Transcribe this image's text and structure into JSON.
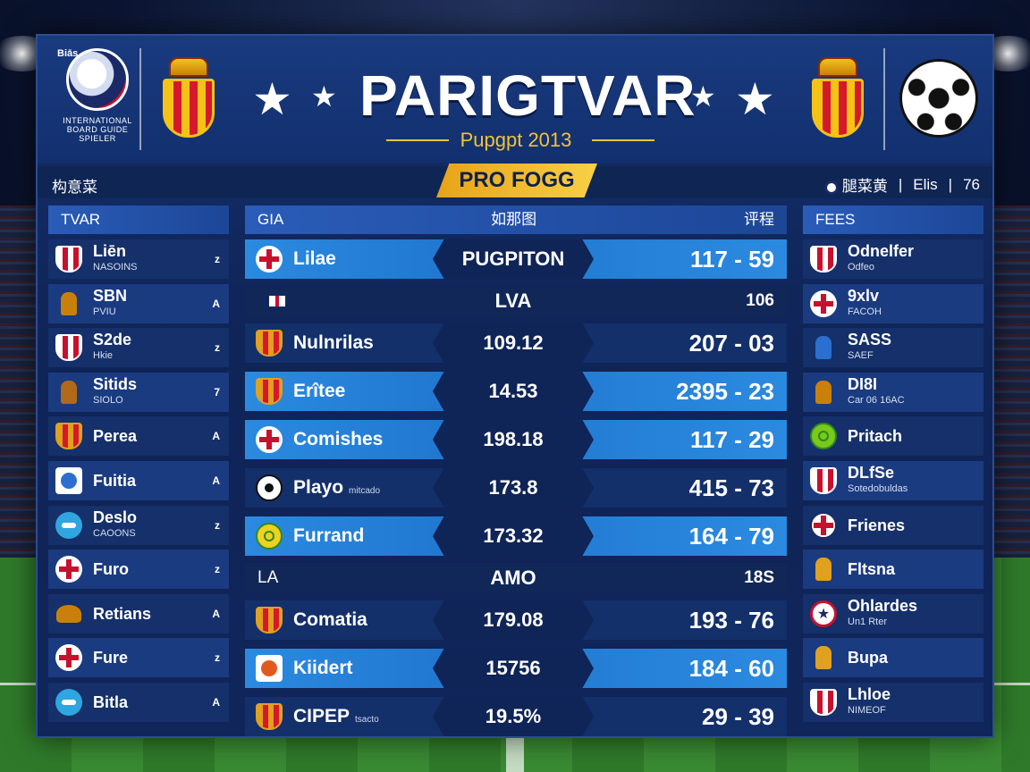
{
  "header": {
    "logo_top": "Biās",
    "logo_text": "INTERNATIONAL\nBOARD GUIDE\nSPIELER",
    "title": "PARIGTVAR",
    "subtitle": "Pupgpt 2013"
  },
  "subbar": {
    "left": "构意菜",
    "badge": "PRO FOGG",
    "right_1": "腿菜黄",
    "right_2": "Elis",
    "right_3": "76"
  },
  "left_column": {
    "header": "TVAR",
    "rows": [
      {
        "name": "Liēn",
        "sub": "NASOINS",
        "val": "z",
        "icon": "shield-stripes-icon",
        "color": "#c8102e"
      },
      {
        "name": "SBN",
        "sub": "PVIU",
        "val": "A",
        "icon": "figure-icon",
        "color": "#c9800a"
      },
      {
        "name": "S2de",
        "sub": "Hkie",
        "val": "z",
        "icon": "shield-stripes-icon",
        "color": "#c8102e"
      },
      {
        "name": "Sitids",
        "sub": "SIOLO",
        "val": "7",
        "icon": "figure-icon",
        "color": "#b06a1a"
      },
      {
        "name": "Perea",
        "sub": "",
        "val": "A",
        "icon": "crest-icon",
        "color": "#e0a020"
      },
      {
        "name": "Fuitia",
        "sub": "",
        "val": "A",
        "icon": "badge-icon",
        "color": "#2b6fd0"
      },
      {
        "name": "Deslo",
        "sub": "CAOONS",
        "val": "z",
        "icon": "bird-icon",
        "color": "#2fa6e0"
      },
      {
        "name": "Furo",
        "sub": "",
        "val": "z",
        "icon": "cross-icon",
        "color": "#c8102e"
      },
      {
        "name": "Retians",
        "sub": "",
        "val": "A",
        "icon": "eagle-icon",
        "color": "#c9800a"
      },
      {
        "name": "Fure",
        "sub": "",
        "val": "z",
        "icon": "cross-icon",
        "color": "#c8102e"
      },
      {
        "name": "Bitla",
        "sub": "",
        "val": "A",
        "icon": "bird-icon",
        "color": "#2fa6e0"
      }
    ]
  },
  "mid_column": {
    "header_left": "GIA",
    "header_mid": "如那图",
    "header_right": "评程",
    "rows": [
      {
        "type": "hl",
        "name": "Lilae",
        "small": "",
        "val": "PUGPITON",
        "score": "117 - 59",
        "icon": "cross-icon",
        "color": "#c8102e"
      },
      {
        "type": "thin",
        "name": "",
        "small": "",
        "val": "LVA",
        "score": "106",
        "icon": "flag-icon",
        "color": "#c8102e"
      },
      {
        "type": "norm",
        "name": "Nulnrilas",
        "small": "",
        "val": "109.12",
        "score": "207 - 03",
        "icon": "crest-icon",
        "color": "#e0a020"
      },
      {
        "type": "hl",
        "name": "Erîtee",
        "small": "",
        "val": "14.53",
        "score": "2395 - 23",
        "icon": "crest-icon",
        "color": "#e0a020"
      },
      {
        "type": "hl",
        "name": "Comishes",
        "small": "",
        "val": "198.18",
        "score": "117 - 29",
        "icon": "cross-icon",
        "color": "#c8102e"
      },
      {
        "type": "norm",
        "name": "Playo",
        "small": "mitcado",
        "val": "173.8",
        "score": "415 - 73",
        "icon": "ball-icon",
        "color": "#ffffff"
      },
      {
        "type": "hl",
        "name": "Furrand",
        "small": "",
        "val": "173.32",
        "score": "164 - 79",
        "icon": "ring-icon",
        "color": "#f0d020"
      },
      {
        "type": "thin",
        "name": "LA",
        "small": "",
        "val": "AMO",
        "score": "18S",
        "icon": "",
        "color": ""
      },
      {
        "type": "norm",
        "name": "Comatia",
        "small": "",
        "val": "179.08",
        "score": "193 - 76",
        "icon": "crest-icon",
        "color": "#e0a020"
      },
      {
        "type": "hl",
        "name": "Kiidert",
        "small": "",
        "val": "15756",
        "score": "184 - 60",
        "icon": "badge-icon",
        "color": "#e05a20"
      },
      {
        "type": "norm",
        "name": "CIPEP",
        "small": "tsacto",
        "val": "19.5%",
        "score": "29 - 39",
        "icon": "crest-icon",
        "color": "#e0a020"
      }
    ]
  },
  "right_column": {
    "header": "FEES",
    "rows": [
      {
        "name": "Odnelfer",
        "sub": "Odfeo",
        "icon": "shield-stripes-icon",
        "color": "#c8102e"
      },
      {
        "name": "9xlv",
        "sub": "FACOH",
        "icon": "cross-icon",
        "color": "#c8102e"
      },
      {
        "name": "SASS",
        "sub": "SAEF",
        "icon": "figure-icon",
        "color": "#2b6fd0"
      },
      {
        "name": "DI8I",
        "sub": "Car 06 16AC",
        "icon": "figure-icon",
        "color": "#c9800a"
      },
      {
        "name": "Pritach",
        "sub": "",
        "icon": "ring-icon",
        "color": "#7ac81a"
      },
      {
        "name": "DLfSe",
        "sub": "Sotedobuldas",
        "icon": "shield-stripes-icon",
        "color": "#c8102e"
      },
      {
        "name": "Frienes",
        "sub": "",
        "icon": "union-icon",
        "color": "#c8102e"
      },
      {
        "name": "Fltsna",
        "sub": "",
        "icon": "figure-icon",
        "color": "#e0a020"
      },
      {
        "name": "Ohlardes",
        "sub": "Un1 Rter",
        "icon": "star-badge-icon",
        "color": "#c8102e"
      },
      {
        "name": "Bupa",
        "sub": "",
        "icon": "figure-icon",
        "color": "#e0a020"
      },
      {
        "name": "Lhloe",
        "sub": "NIMEOF",
        "icon": "shield-stripes-icon",
        "color": "#c8102e"
      }
    ]
  }
}
